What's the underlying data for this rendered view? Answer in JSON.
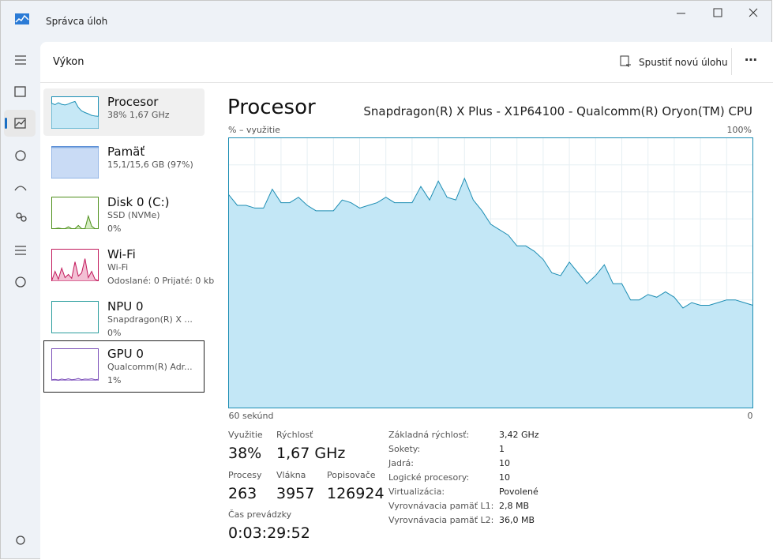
{
  "window": {
    "title": "Správca úloh"
  },
  "header": {
    "title": "Výkon",
    "action": "Spustiť novú úlohu"
  },
  "sidebar": [
    {
      "name": "Procesor",
      "lines": [
        "38%  1,67 GHz"
      ],
      "values": [
        79,
        75,
        81,
        76,
        74,
        77,
        82,
        85,
        66,
        55,
        50,
        46,
        41,
        39,
        38
      ],
      "color": "#1a8fb5",
      "fill": "#c6e8f6"
    },
    {
      "name": "Pamäť",
      "lines": [
        "15,1/15,6 GB (97%)"
      ],
      "values": [
        97,
        97,
        97,
        97,
        97,
        97,
        97,
        97,
        97,
        97,
        97,
        97,
        97,
        97,
        97
      ],
      "color": "#5b8fd6",
      "fill": "#c9dbf5"
    },
    {
      "name": "Disk 0 (C:)",
      "lines": [
        "SSD (NVMe)",
        "0%"
      ],
      "values": [
        0,
        0,
        2,
        0,
        0,
        6,
        0,
        0,
        10,
        0,
        0,
        40,
        8,
        0,
        0
      ],
      "color": "#4d8f1a",
      "fill": "#d5ecc2"
    },
    {
      "name": "Wi-Fi",
      "lines": [
        "Wi-Fi",
        "Odoslané: 0 Prijaté: 0 kb"
      ],
      "values": [
        0,
        30,
        5,
        40,
        10,
        20,
        8,
        60,
        15,
        25,
        70,
        10,
        30,
        5,
        0
      ],
      "color": "#c2185b",
      "fill": "#f3c0d4"
    },
    {
      "name": "NPU 0",
      "lines": [
        "Snapdragon(R) X ...",
        "0%"
      ],
      "values": [
        0,
        0,
        0,
        0,
        0,
        0,
        0,
        0,
        0,
        0,
        0,
        0,
        0,
        0,
        0
      ],
      "color": "#2a9d9d",
      "fill": "#c8eeee"
    },
    {
      "name": "GPU 0",
      "lines": [
        "Qualcomm(R) Adr...",
        "1%"
      ],
      "values": [
        2,
        3,
        1,
        4,
        2,
        5,
        2,
        3,
        6,
        2,
        4,
        3,
        5,
        2,
        3
      ],
      "color": "#7b4fb8",
      "fill": "#e0d3f3"
    }
  ],
  "main": {
    "title": "Procesor",
    "subtitle": "Snapdragon(R) X Plus - X1P64100 - Qualcomm(R) Oryon(TM) CPU",
    "chart": {
      "type": "area",
      "y_label": "% – využitie",
      "ylim": [
        0,
        100
      ],
      "yticks": [
        {
          "value": 100,
          "label": "100%"
        }
      ],
      "xlim": [
        60,
        0
      ],
      "xticks": [
        {
          "value": 60,
          "label": "60 sekúnd"
        },
        0
      ],
      "color": "#1c8db3",
      "fill": "#c3e7f6",
      "x": [
        60,
        59,
        58,
        57,
        56,
        55,
        54,
        53,
        52,
        51,
        50,
        49,
        48,
        47,
        46,
        45,
        44,
        43,
        42,
        41,
        40,
        39,
        38,
        37,
        36,
        35,
        34,
        33,
        32,
        31,
        30,
        29,
        28,
        27,
        26,
        25,
        24,
        23,
        22,
        21,
        20,
        19,
        18,
        17,
        16,
        15,
        14,
        13,
        12,
        11,
        10,
        9,
        8,
        7,
        6,
        5,
        4,
        3,
        2,
        1,
        0
      ],
      "values": [
        79,
        75,
        75,
        74,
        74,
        81,
        76,
        76,
        78,
        75,
        73,
        73,
        73,
        77,
        76,
        74,
        75,
        76,
        78,
        76,
        76,
        76,
        82,
        77,
        84,
        78,
        77,
        85,
        77,
        73,
        68,
        66,
        64,
        60,
        60,
        58,
        55,
        50,
        49,
        54,
        50,
        46,
        49,
        53,
        46,
        46,
        40,
        40,
        42,
        41,
        43,
        41,
        37,
        39,
        38,
        38,
        39,
        40,
        40,
        39,
        38
      ]
    },
    "stats": [
      {
        "label": "Využitie",
        "value": "38%"
      },
      {
        "label": "Rýchlosť",
        "value": "1,67 GHz"
      },
      {
        "label": "Procesy",
        "value": "263"
      },
      {
        "label": "Vlákna",
        "value": "3957"
      },
      {
        "label": "Popisovače",
        "value": "126924"
      },
      {
        "label": "Čas prevádzky",
        "value": "0:03:29:52"
      }
    ],
    "details": [
      [
        "Základná rýchlosť:",
        "3,42 GHz"
      ],
      [
        "Sokety:",
        "1"
      ],
      [
        "Jadrá:",
        "10"
      ],
      [
        "Logické procesory:",
        "10"
      ],
      [
        "Virtualizácia:",
        "Povolené"
      ],
      [
        "Vyrovnávacia pamäť L1:",
        "2,8 MB"
      ],
      [
        "Vyrovnávacia pamäť L2:",
        "36,0 MB"
      ]
    ]
  }
}
